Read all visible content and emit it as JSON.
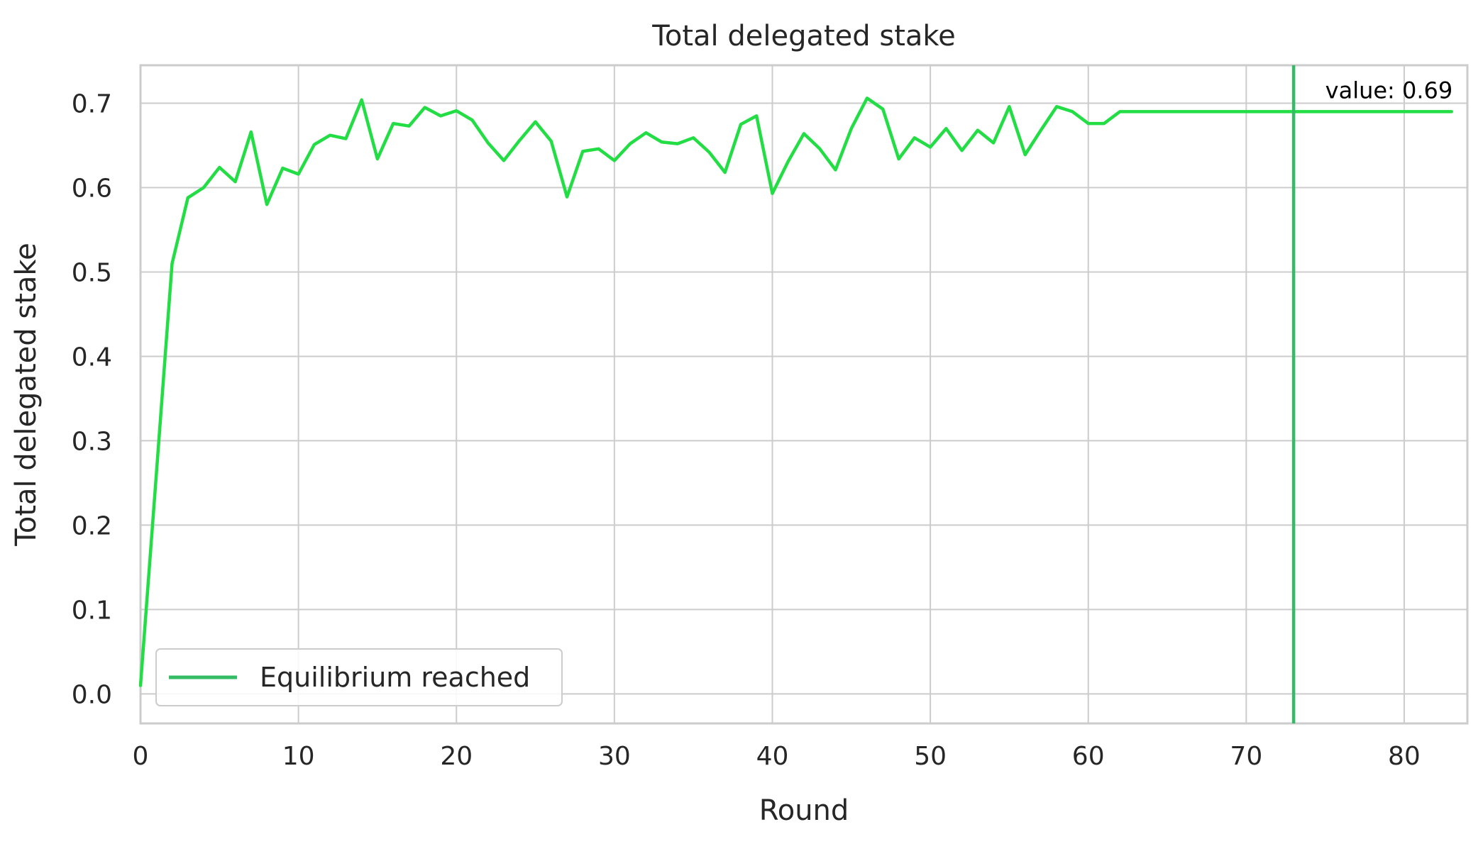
{
  "chart_data": {
    "type": "line",
    "title": "Total delegated stake",
    "xlabel": "Round",
    "ylabel": "Total delegated stake",
    "xlim": [
      0,
      84
    ],
    "ylim": [
      -0.035,
      0.745
    ],
    "xticks": [
      0,
      10,
      20,
      30,
      40,
      50,
      60,
      70,
      80
    ],
    "xtick_labels": [
      "0",
      "10",
      "20",
      "30",
      "40",
      "50",
      "60",
      "70",
      "80"
    ],
    "yticks": [
      0.0,
      0.1,
      0.2,
      0.3,
      0.4,
      0.5,
      0.6,
      0.7
    ],
    "ytick_labels": [
      "0.0",
      "0.1",
      "0.2",
      "0.3",
      "0.4",
      "0.5",
      "0.6",
      "0.7"
    ],
    "grid": true,
    "legend": {
      "position": "lower-left",
      "entries": [
        "Equilibrium reached"
      ]
    },
    "series": [
      {
        "color": "#22dd44",
        "x": [
          0,
          1,
          2,
          3,
          4,
          5,
          6,
          7,
          8,
          9,
          10,
          11,
          12,
          13,
          14,
          15,
          16,
          17,
          18,
          19,
          20,
          21,
          22,
          23,
          24,
          25,
          26,
          27,
          28,
          29,
          30,
          31,
          32,
          33,
          34,
          35,
          36,
          37,
          38,
          39,
          40,
          41,
          42,
          43,
          44,
          45,
          46,
          47,
          48,
          49,
          50,
          51,
          52,
          53,
          54,
          55,
          56,
          57,
          58,
          59,
          60,
          61,
          62,
          63,
          64,
          65,
          66,
          67,
          68,
          69,
          70,
          71,
          72,
          73,
          74,
          75,
          76,
          77,
          78,
          79,
          80,
          81,
          82,
          83
        ],
        "values": [
          0.01,
          0.26,
          0.51,
          0.588,
          0.6,
          0.624,
          0.607,
          0.666,
          0.58,
          0.623,
          0.616,
          0.651,
          0.662,
          0.658,
          0.704,
          0.634,
          0.676,
          0.673,
          0.695,
          0.685,
          0.691,
          0.68,
          0.653,
          0.632,
          0.656,
          0.678,
          0.655,
          0.589,
          0.643,
          0.646,
          0.632,
          0.652,
          0.665,
          0.654,
          0.652,
          0.659,
          0.642,
          0.618,
          0.675,
          0.685,
          0.593,
          0.631,
          0.664,
          0.646,
          0.621,
          0.67,
          0.706,
          0.693,
          0.634,
          0.659,
          0.648,
          0.67,
          0.644,
          0.668,
          0.653,
          0.696,
          0.639,
          0.668,
          0.696,
          0.69,
          0.676,
          0.676,
          0.69,
          0.69,
          0.69,
          0.69,
          0.69,
          0.69,
          0.69,
          0.69,
          0.69,
          0.69,
          0.69,
          0.69,
          0.69,
          0.69,
          0.69,
          0.69,
          0.69,
          0.69,
          0.69,
          0.69,
          0.69,
          0.69
        ]
      }
    ],
    "vline": {
      "x": 73,
      "color": "#33bb66",
      "label": "Equilibrium reached"
    },
    "annotation": {
      "text": "value: 0.69",
      "x": 75,
      "y": 0.715
    }
  }
}
